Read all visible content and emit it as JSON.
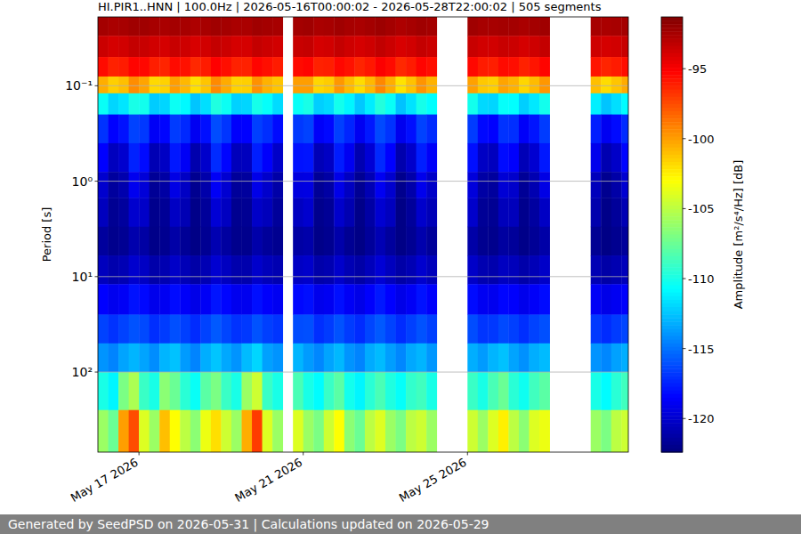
{
  "chart_data": {
    "type": "heatmap",
    "title": "HI.PIR1..HNN | 100.0Hz | 2026-05-16T00:00:02 - 2026-05-28T22:00:02 | 505 segments",
    "y_label": "Period [s]",
    "log": "y",
    "grid": true,
    "xlim": [
      "2026-05-16T00:00:02",
      "2026-05-28T22:00:02"
    ],
    "xticks": [
      {
        "value": "2026-05-17",
        "label": "May 17 2026"
      },
      {
        "value": "2026-05-21",
        "label": "May 21 2026"
      },
      {
        "value": "2026-05-25",
        "label": "May 25 2026"
      }
    ],
    "ylim": [
      0.019,
      690
    ],
    "yticks": [
      {
        "value": 0.1,
        "label": "10⁻¹"
      },
      {
        "value": 1,
        "label": "10⁰"
      },
      {
        "value": 10,
        "label": "10¹"
      },
      {
        "value": 100,
        "label": "10²"
      }
    ],
    "time_bins": [
      "2026-05-16T00:00:02",
      "2026-05-16T06:00:02",
      "2026-05-16T12:00:02",
      "2026-05-16T18:00:02",
      "2026-05-17T00:00:02",
      "2026-05-17T06:00:02",
      "2026-05-17T12:00:02",
      "2026-05-17T18:00:02",
      "2026-05-18T00:00:02",
      "2026-05-18T06:00:02",
      "2026-05-18T12:00:02",
      "2026-05-18T18:00:02",
      "2026-05-19T00:00:02",
      "2026-05-19T06:00:02",
      "2026-05-19T12:00:02",
      "2026-05-19T18:00:02",
      "2026-05-20T00:00:02",
      "2026-05-20T06:00:02",
      "2026-05-20T12:00:02",
      "2026-05-20T18:00:02",
      "2026-05-21T00:00:02",
      "2026-05-21T06:00:02",
      "2026-05-21T12:00:02",
      "2026-05-21T18:00:02",
      "2026-05-22T00:00:02",
      "2026-05-22T06:00:02",
      "2026-05-22T12:00:02",
      "2026-05-22T18:00:02",
      "2026-05-23T00:00:02",
      "2026-05-23T06:00:02",
      "2026-05-23T12:00:02",
      "2026-05-23T18:00:02",
      "2026-05-24T00:00:02",
      "2026-05-24T06:00:02",
      "2026-05-24T12:00:02",
      "2026-05-24T18:00:02",
      "2026-05-25T00:00:02",
      "2026-05-25T06:00:02",
      "2026-05-25T12:00:02",
      "2026-05-25T18:00:02",
      "2026-05-26T00:00:02",
      "2026-05-26T06:00:02",
      "2026-05-26T12:00:02",
      "2026-05-26T18:00:02",
      "2026-05-27T00:00:02",
      "2026-05-27T06:00:02",
      "2026-05-27T12:00:02",
      "2026-05-27T18:00:02",
      "2026-05-28T00:00:02",
      "2026-05-28T06:00:02",
      "2026-05-28T12:00:02",
      "2026-05-28T18:00:02",
      "2026-05-28T22:00:02"
    ],
    "period_bins": [
      0.019,
      0.03,
      0.05,
      0.08,
      0.12,
      0.2,
      0.4,
      0.8,
      1.5,
      3,
      6,
      12,
      25,
      50,
      100,
      250,
      690
    ],
    "z": [
      [
        -92.4,
        -92.6,
        -92.5,
        -92.3,
        -92.3,
        -92.5,
        -92.6,
        -92.4,
        -92.5,
        -92.7,
        -92.5,
        -92.3,
        -92.4,
        -92.6,
        -92.6,
        -92.3,
        -92.4,
        -92.5,
        null,
        -92.4,
        -92.3,
        -92.6,
        -92.5,
        -92.3,
        -92.5,
        -92.6,
        -92.4,
        -92.2,
        -92.4,
        -92.7,
        -92.5,
        -92.3,
        -92.4,
        null,
        null,
        null,
        -92.3,
        -92.5,
        -92.5,
        -92.4,
        -92.4,
        -92.6,
        -92.4,
        -92.3,
        null,
        null,
        null,
        null,
        -92.5,
        -92.6,
        -92.5,
        -92.4
      ],
      [
        -93.6,
        -93.9,
        -93.8,
        -93.4,
        -93.5,
        -93.8,
        -93.9,
        -93.5,
        -93.7,
        -94.0,
        -93.8,
        -93.4,
        -93.6,
        -93.9,
        -93.9,
        -93.4,
        -93.6,
        -93.8,
        null,
        -93.5,
        -93.4,
        -93.9,
        -93.8,
        -93.4,
        -93.7,
        -93.9,
        -93.7,
        -93.3,
        -93.6,
        -94.0,
        -93.8,
        -93.4,
        -93.6,
        null,
        null,
        null,
        -93.5,
        -93.8,
        -93.8,
        -93.5,
        -93.6,
        -93.9,
        -93.7,
        -93.4,
        null,
        null,
        null,
        null,
        -93.7,
        -93.9,
        -93.8,
        -93.5
      ],
      [
        -95.5,
        -96.2,
        -96.0,
        -95.3,
        -95.4,
        -96.1,
        -96.3,
        -95.5,
        -95.7,
        -96.4,
        -96.0,
        -95.2,
        -95.6,
        -96.2,
        -96.2,
        -95.3,
        -95.6,
        -96.0,
        null,
        -95.5,
        -95.3,
        -96.2,
        -96.1,
        -95.4,
        -95.7,
        -96.3,
        -95.9,
        -95.1,
        -95.5,
        -96.4,
        -96.0,
        -95.3,
        -95.6,
        null,
        null,
        null,
        -95.4,
        -96.0,
        -96.1,
        -95.5,
        -95.6,
        -96.2,
        -95.8,
        -95.3,
        null,
        null,
        null,
        null,
        -95.8,
        -96.3,
        -96.0,
        -95.6
      ],
      [
        -100.5,
        -101.5,
        -101.0,
        -99.5,
        -100.2,
        -101.8,
        -101.6,
        -100.0,
        -100.8,
        -102.0,
        -101.2,
        -99.4,
        -100.4,
        -101.6,
        -101.5,
        -99.6,
        -100.6,
        -101.2,
        null,
        -100.0,
        -100.0,
        -101.7,
        -101.4,
        -99.8,
        -100.9,
        -101.9,
        -100.8,
        -99.3,
        -100.5,
        -102.1,
        -101.1,
        -99.7,
        -100.6,
        null,
        null,
        null,
        -100.1,
        -101.3,
        -101.5,
        -100.2,
        -100.6,
        -101.7,
        -100.9,
        -99.8,
        null,
        null,
        null,
        null,
        -101.0,
        -101.9,
        -101.2,
        -100.4
      ],
      [
        -110.5,
        -112.0,
        -111.5,
        -110.0,
        -110.2,
        -112.3,
        -112.0,
        -110.4,
        -110.9,
        -112.5,
        -111.7,
        -109.8,
        -110.4,
        -112.1,
        -112.0,
        -110.1,
        -110.6,
        -111.8,
        null,
        -110.5,
        -110.0,
        -112.2,
        -111.9,
        -110.2,
        -111.0,
        -112.4,
        -111.3,
        -109.7,
        -110.5,
        -112.6,
        -111.6,
        -110.1,
        -110.7,
        null,
        null,
        null,
        -110.2,
        -111.9,
        -112.0,
        -110.6,
        -110.7,
        -112.2,
        -111.4,
        -110.2,
        null,
        null,
        null,
        null,
        -111.2,
        -112.5,
        -111.7,
        -110.8
      ],
      [
        -117.0,
        -118.5,
        -118.0,
        -116.5,
        -116.8,
        -118.8,
        -118.4,
        -116.7,
        -117.3,
        -118.9,
        -118.1,
        -116.2,
        -116.9,
        -118.6,
        -118.5,
        -116.6,
        -117.1,
        -118.2,
        null,
        -116.8,
        -116.5,
        -118.7,
        -118.3,
        -116.6,
        -117.4,
        -118.9,
        -117.8,
        -116.3,
        -117.0,
        -119.0,
        -118.1,
        -116.5,
        -117.2,
        null,
        null,
        null,
        -116.7,
        -118.3,
        -118.5,
        -117.0,
        -117.1,
        -118.7,
        -117.9,
        -116.7,
        null,
        null,
        null,
        null,
        -117.6,
        -118.9,
        -118.2,
        -117.2
      ],
      [
        -118.5,
        -120.5,
        -120.0,
        -117.5,
        -118.2,
        -120.8,
        -120.3,
        -117.8,
        -118.8,
        -121.0,
        -120.1,
        -117.2,
        -118.4,
        -120.6,
        -120.5,
        -117.6,
        -118.6,
        -120.2,
        null,
        -118.0,
        -117.9,
        -120.7,
        -120.3,
        -117.7,
        -118.9,
        -120.9,
        -119.8,
        -117.3,
        -118.5,
        -121.0,
        -120.1,
        -117.6,
        -118.7,
        null,
        null,
        null,
        -118.1,
        -120.3,
        -120.5,
        -118.2,
        -118.6,
        -120.7,
        -119.9,
        -117.8,
        null,
        null,
        null,
        null,
        -119.1,
        -120.9,
        -120.2,
        -118.4
      ],
      [
        -120.0,
        -121.5,
        -121.0,
        -119.0,
        -119.7,
        -121.7,
        -121.3,
        -119.3,
        -120.3,
        -121.9,
        -121.1,
        -118.8,
        -119.9,
        -121.6,
        -121.5,
        -119.2,
        -120.1,
        -121.2,
        null,
        -119.5,
        -119.4,
        -121.7,
        -121.3,
        -119.2,
        -120.4,
        -121.8,
        -120.8,
        -118.9,
        -120.0,
        -122.0,
        -121.1,
        -119.1,
        -120.2,
        null,
        null,
        null,
        -119.6,
        -121.3,
        -121.5,
        -119.8,
        -120.1,
        -121.7,
        -120.9,
        -119.3,
        null,
        null,
        null,
        null,
        -120.6,
        -121.9,
        -121.2,
        -119.9
      ],
      [
        -120.5,
        -121.8,
        -121.5,
        -120.0,
        -120.2,
        -122.0,
        -121.7,
        -120.3,
        -120.8,
        -122.1,
        -121.6,
        -119.8,
        -120.4,
        -121.9,
        -121.8,
        -120.2,
        -120.6,
        -121.6,
        null,
        -120.4,
        -120.0,
        -122.0,
        -121.7,
        -120.1,
        -120.9,
        -122.1,
        -121.3,
        -119.9,
        -120.5,
        -122.2,
        -121.6,
        -120.1,
        -120.7,
        null,
        null,
        null,
        -120.1,
        -121.7,
        -121.8,
        -120.6,
        -120.6,
        -122.0,
        -121.4,
        -120.3,
        null,
        null,
        null,
        null,
        -121.0,
        -122.1,
        -121.6,
        -120.8
      ],
      [
        -121.5,
        -122.0,
        -121.8,
        -121.0,
        -121.3,
        -122.1,
        -121.9,
        -121.2,
        -121.7,
        -122.2,
        -121.8,
        -120.9,
        -121.4,
        -122.0,
        -122.0,
        -121.1,
        -121.6,
        -121.9,
        null,
        -121.3,
        -121.1,
        -122.1,
        -121.9,
        -121.1,
        -121.8,
        -122.2,
        -121.6,
        -120.8,
        -121.5,
        -122.2,
        -121.8,
        -121.0,
        -121.6,
        null,
        null,
        null,
        -121.2,
        -121.9,
        -122.0,
        -121.4,
        -121.6,
        -122.1,
        -121.7,
        -121.2,
        null,
        null,
        null,
        null,
        -121.8,
        -122.2,
        -121.9,
        -121.6
      ],
      [
        -120.5,
        -121.0,
        -120.8,
        -120.0,
        -120.3,
        -121.1,
        -120.9,
        -120.2,
        -120.7,
        -121.2,
        -120.8,
        -119.9,
        -120.4,
        -121.0,
        -121.0,
        -120.1,
        -120.6,
        -120.9,
        null,
        -120.3,
        -120.1,
        -121.1,
        -120.9,
        -120.1,
        -120.8,
        -121.2,
        -120.6,
        -119.8,
        -120.5,
        -121.2,
        -120.8,
        -120.0,
        -120.6,
        null,
        null,
        null,
        -120.2,
        -120.9,
        -121.0,
        -120.4,
        -120.6,
        -121.1,
        -120.7,
        -120.2,
        null,
        null,
        null,
        null,
        -120.8,
        -121.2,
        -120.9,
        -120.6
      ],
      [
        -118.5,
        -119.0,
        -118.8,
        -118.0,
        -118.3,
        -119.1,
        -118.9,
        -118.2,
        -118.7,
        -119.2,
        -118.8,
        -117.9,
        -118.4,
        -119.0,
        -119.0,
        -118.1,
        -118.6,
        -118.9,
        null,
        -118.3,
        -118.1,
        -119.1,
        -118.9,
        -118.1,
        -118.8,
        -119.2,
        -118.6,
        -117.8,
        -118.5,
        -119.2,
        -118.8,
        -118.0,
        -118.6,
        null,
        null,
        null,
        -118.2,
        -118.9,
        -119.0,
        -118.4,
        -118.6,
        -119.1,
        -118.7,
        -118.2,
        null,
        null,
        null,
        null,
        -118.8,
        -119.2,
        -118.9,
        -118.6
      ],
      [
        -116.5,
        -117.0,
        -116.5,
        -116.0,
        -116.3,
        -117.1,
        -116.7,
        -116.1,
        -116.6,
        -117.2,
        -116.5,
        -115.8,
        -116.4,
        -117.0,
        -116.8,
        -116.0,
        -116.6,
        -116.9,
        null,
        -116.2,
        -116.1,
        -117.1,
        -116.7,
        -116.0,
        -116.7,
        -117.2,
        -116.4,
        -115.8,
        -116.5,
        -117.2,
        -116.6,
        -116.0,
        -116.6,
        null,
        null,
        null,
        -116.2,
        -116.9,
        -116.8,
        -116.3,
        -116.6,
        -117.1,
        -116.5,
        -116.1,
        null,
        null,
        null,
        null,
        -116.8,
        -117.2,
        -116.7,
        -116.4
      ],
      [
        -114.0,
        -114.5,
        -113.5,
        -113.0,
        -113.5,
        -114.2,
        -113.0,
        -112.6,
        -113.8,
        -114.5,
        -113.2,
        -112.5,
        -113.4,
        -114.0,
        -112.8,
        -112.0,
        -113.6,
        -114.0,
        null,
        -113.0,
        -113.8,
        -114.4,
        -113.5,
        -112.9,
        -114.0,
        -114.5,
        -113.3,
        -112.8,
        -113.7,
        -114.4,
        -113.4,
        -113.0,
        -113.9,
        null,
        null,
        null,
        -113.2,
        -113.8,
        -113.0,
        -112.6,
        -113.5,
        -114.1,
        -113.2,
        -112.8,
        null,
        null,
        null,
        null,
        -114.0,
        -114.4,
        -113.6,
        -113.2
      ],
      [
        -110.0,
        -111.0,
        -107.0,
        -105.5,
        -109.0,
        -110.0,
        -106.5,
        -107.5,
        -109.5,
        -110.5,
        -108.0,
        -107.0,
        -109.0,
        -110.0,
        -106.0,
        -104.5,
        -109.0,
        -110.0,
        null,
        -108.5,
        -110.0,
        -110.8,
        -109.0,
        -108.0,
        -110.2,
        -111.0,
        -109.5,
        -108.5,
        -109.8,
        -110.6,
        -109.2,
        -108.8,
        -110.0,
        null,
        null,
        null,
        -109.0,
        -110.0,
        -108.5,
        -107.5,
        -109.5,
        -110.3,
        -108.8,
        -108.0,
        null,
        null,
        null,
        null,
        -110.0,
        -110.8,
        -109.5,
        -108.8
      ],
      [
        -106.0,
        -107.5,
        -100.0,
        -97.5,
        -104.0,
        -106.0,
        -101.0,
        -103.0,
        -105.0,
        -106.5,
        -103.5,
        -102.0,
        -104.5,
        -106.0,
        -100.5,
        -97.0,
        -104.0,
        -106.0,
        null,
        -104.0,
        -106.0,
        -107.0,
        -104.5,
        -103.0,
        -106.5,
        -107.5,
        -105.0,
        -104.0,
        -106.0,
        -107.0,
        -105.0,
        -104.5,
        -106.0,
        null,
        null,
        null,
        -104.5,
        -106.0,
        -104.0,
        -102.5,
        -105.0,
        -106.5,
        -104.0,
        -103.5,
        null,
        null,
        null,
        null,
        -106.0,
        -107.0,
        -105.0,
        -104.5
      ]
    ],
    "colorbar": {
      "label": "Amplitude [m²/s⁴/Hz] [dB]",
      "range": [
        -122.4,
        -91.3
      ],
      "ticks": [
        -95,
        -100,
        -105,
        -110,
        -115,
        -120
      ]
    },
    "footer": "Generated by SeedPSD on 2026-05-31 | Calculations updated on 2026-05-29"
  }
}
